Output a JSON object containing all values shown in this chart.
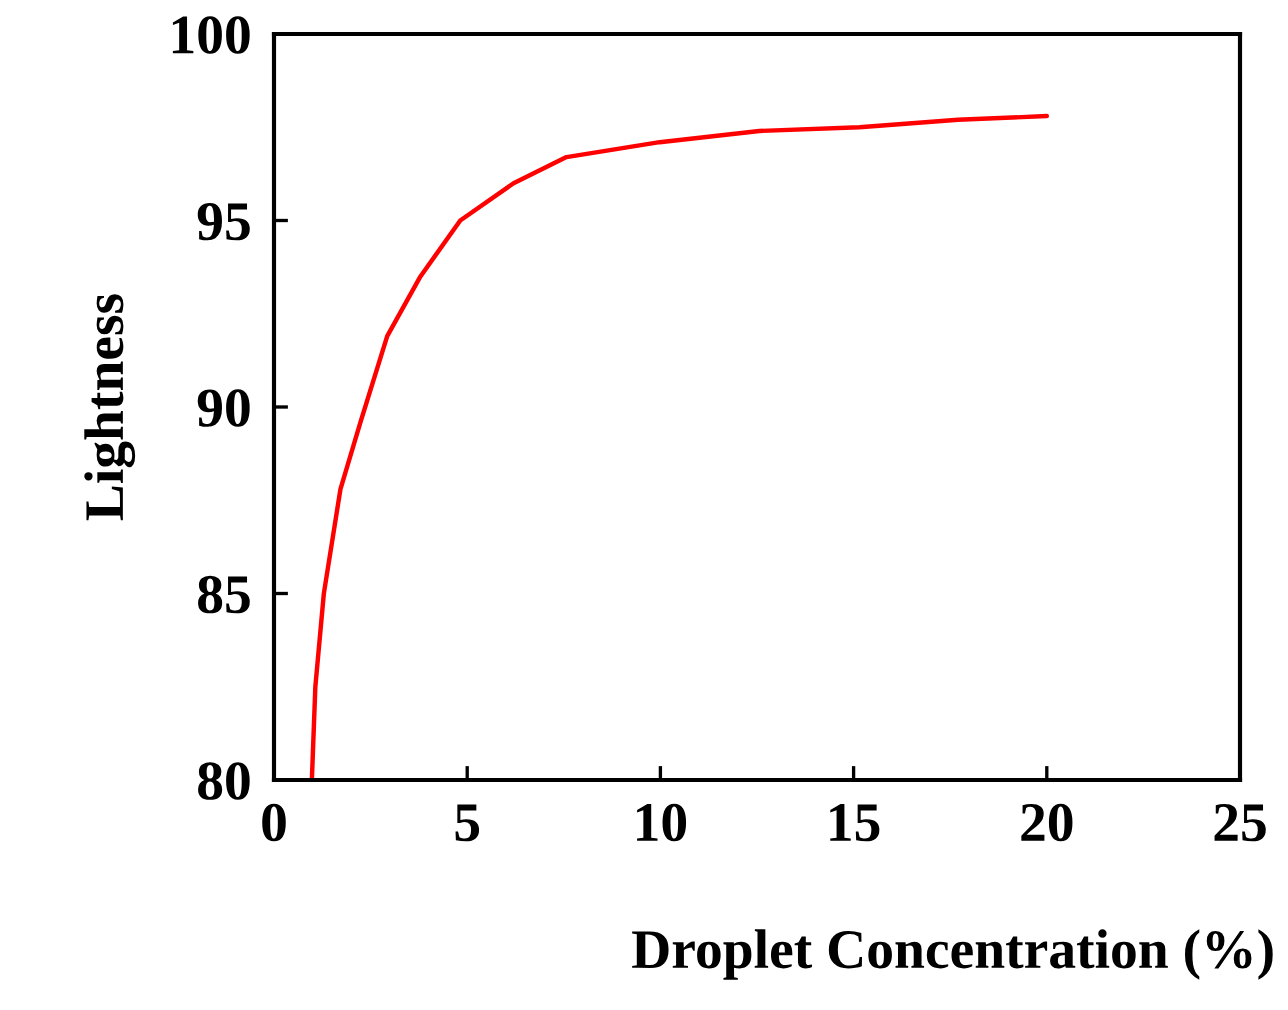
{
  "chart_data": {
    "type": "line",
    "xlabel": "Droplet Concentration (%)",
    "ylabel": "Lightness",
    "x": [
      0.98,
      1.07,
      1.29,
      1.72,
      2.24,
      2.93,
      3.79,
      4.82,
      6.2,
      7.57,
      9.98,
      12.56,
      15.15,
      17.7,
      20.0
    ],
    "series": [
      {
        "color": "#ff0000",
        "values": [
          80,
          82.5,
          85.0,
          87.8,
          89.6,
          91.9,
          93.5,
          95.0,
          96.0,
          96.7,
          97.1,
          97.4,
          97.5,
          97.7,
          97.8
        ]
      }
    ],
    "xlim": [
      0,
      25
    ],
    "xticks": [
      0,
      5,
      10,
      15,
      20,
      25
    ],
    "ylim": [
      80,
      100
    ],
    "yticks": [
      80,
      85,
      90,
      95,
      100
    ],
    "grid": false,
    "marker": "none",
    "line_style": "solid"
  }
}
